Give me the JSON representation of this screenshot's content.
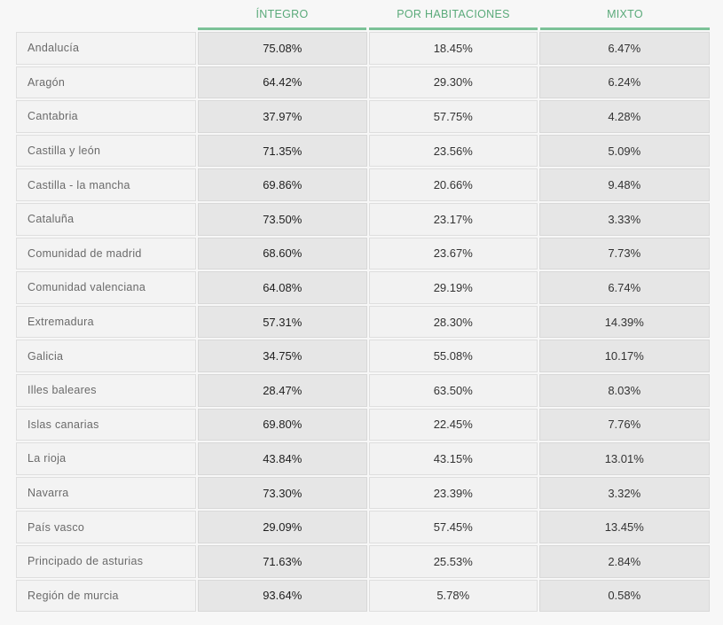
{
  "header": {
    "col1": "ÍNTEGRO",
    "col2": "POR HABITACIONES",
    "col3": "MIXTO"
  },
  "rows": [
    {
      "region": "Andalucía",
      "integro": "75.08%",
      "habitaciones": "18.45%",
      "mixto": "6.47%"
    },
    {
      "region": "Aragón",
      "integro": "64.42%",
      "habitaciones": "29.30%",
      "mixto": "6.24%"
    },
    {
      "region": "Cantabria",
      "integro": "37.97%",
      "habitaciones": "57.75%",
      "mixto": "4.28%"
    },
    {
      "region": "Castilla y león",
      "integro": "71.35%",
      "habitaciones": "23.56%",
      "mixto": "5.09%"
    },
    {
      "region": "Castilla - la mancha",
      "integro": "69.86%",
      "habitaciones": "20.66%",
      "mixto": "9.48%"
    },
    {
      "region": "Cataluña",
      "integro": "73.50%",
      "habitaciones": "23.17%",
      "mixto": "3.33%"
    },
    {
      "region": "Comunidad de madrid",
      "integro": "68.60%",
      "habitaciones": "23.67%",
      "mixto": "7.73%"
    },
    {
      "region": "Comunidad valenciana",
      "integro": "64.08%",
      "habitaciones": "29.19%",
      "mixto": "6.74%"
    },
    {
      "region": "Extremadura",
      "integro": "57.31%",
      "habitaciones": "28.30%",
      "mixto": "14.39%"
    },
    {
      "region": "Galicia",
      "integro": "34.75%",
      "habitaciones": "55.08%",
      "mixto": "10.17%"
    },
    {
      "region": "Illes baleares",
      "integro": "28.47%",
      "habitaciones": "63.50%",
      "mixto": "8.03%"
    },
    {
      "region": "Islas canarias",
      "integro": "69.80%",
      "habitaciones": "22.45%",
      "mixto": "7.76%"
    },
    {
      "region": "La rioja",
      "integro": "43.84%",
      "habitaciones": "43.15%",
      "mixto": "13.01%"
    },
    {
      "region": "Navarra",
      "integro": "73.30%",
      "habitaciones": "23.39%",
      "mixto": "3.32%"
    },
    {
      "region": "País vasco",
      "integro": "29.09%",
      "habitaciones": "57.45%",
      "mixto": "13.45%"
    },
    {
      "region": "Principado de asturias",
      "integro": "71.63%",
      "habitaciones": "25.53%",
      "mixto": "2.84%"
    },
    {
      "region": "Región de murcia",
      "integro": "93.64%",
      "habitaciones": "5.78%",
      "mixto": "0.58%"
    }
  ]
}
